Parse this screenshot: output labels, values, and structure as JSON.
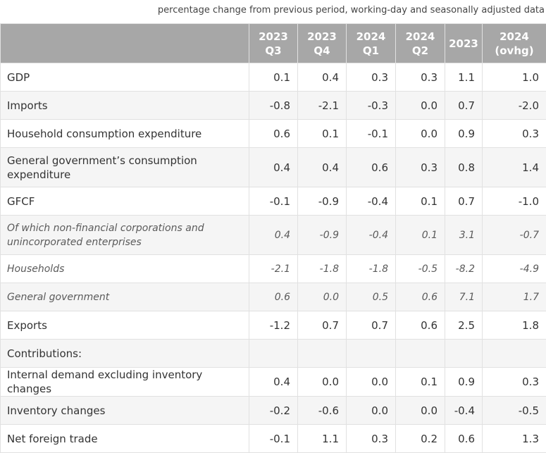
{
  "caption": "percentage change from previous period, working-day and seasonally adjusted data",
  "columns": [
    {
      "line1": "2023",
      "line2": "Q3"
    },
    {
      "line1": "2023",
      "line2": "Q4"
    },
    {
      "line1": "2024",
      "line2": "Q1"
    },
    {
      "line1": "2024",
      "line2": "Q2"
    },
    {
      "line1": "2023",
      "line2": ""
    },
    {
      "line1": "2024",
      "line2": "(ovhg)"
    }
  ],
  "rows": [
    {
      "label": "GDP",
      "values": [
        "0.1",
        "0.4",
        "0.3",
        "0.3",
        "1.1",
        "1.0"
      ]
    },
    {
      "label": "Imports",
      "values": [
        "-0.8",
        "-2.1",
        "-0.3",
        "0.0",
        "0.7",
        "-2.0"
      ]
    },
    {
      "label": "Household consumption expenditure",
      "values": [
        "0.6",
        "0.1",
        "-0.1",
        "0.0",
        "0.9",
        "0.3"
      ]
    },
    {
      "label": "General government’s consumption expenditure",
      "values": [
        "0.4",
        "0.4",
        "0.6",
        "0.3",
        "0.8",
        "1.4"
      ]
    },
    {
      "label": "GFCF",
      "values": [
        "-0.1",
        "-0.9",
        "-0.4",
        "0.1",
        "0.7",
        "-1.0"
      ]
    },
    {
      "label": "Of which non-financial corporations and unincorporated enterprises",
      "values": [
        "0.4",
        "-0.9",
        "-0.4",
        "0.1",
        "3.1",
        "-0.7"
      ]
    },
    {
      "label": "Households",
      "values": [
        "-2.1",
        "-1.8",
        "-1.8",
        "-0.5",
        "-8.2",
        "-4.9"
      ]
    },
    {
      "label": "General government",
      "values": [
        "0.6",
        "0.0",
        "0.5",
        "0.6",
        "7.1",
        "1.7"
      ]
    },
    {
      "label": "Exports",
      "values": [
        "-1.2",
        "0.7",
        "0.7",
        "0.6",
        "2.5",
        "1.8"
      ]
    },
    {
      "label": "Contributions:",
      "values": [
        "",
        "",
        "",
        "",
        "",
        ""
      ]
    },
    {
      "label": "Internal demand excluding inventory changes",
      "values": [
        "0.4",
        "0.0",
        "0.0",
        "0.1",
        "0.9",
        "0.3"
      ]
    },
    {
      "label": "Inventory changes",
      "values": [
        "-0.2",
        "-0.6",
        "0.0",
        "0.0",
        "-0.4",
        "-0.5"
      ]
    },
    {
      "label": "Net foreign trade",
      "values": [
        "-0.1",
        "1.1",
        "0.3",
        "0.2",
        "0.6",
        "1.3"
      ]
    }
  ]
}
